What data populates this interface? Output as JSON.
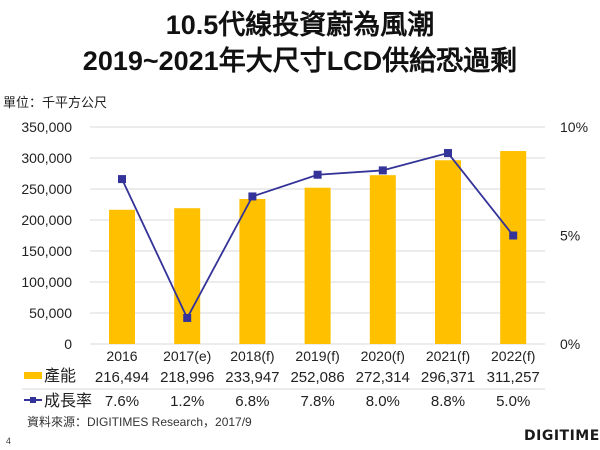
{
  "slide": {
    "title_line1": "10.5代線投資蔚為風潮",
    "title_line2": "2019~2021年大尺寸LCD供給恐過剩",
    "unit_label": "單位：千平方公尺",
    "source": "資料來源：DIGITIMES Research，2017/9",
    "page_number": "4",
    "logo_text": "DIGITIMES"
  },
  "colors": {
    "bar": "#FFC000",
    "line": "#333399",
    "grid": "#D9D9D9",
    "text": "#222222"
  },
  "chart_data": {
    "type": "bar",
    "title": "10.5代線投資蔚為風潮 2019~2021年大尺寸LCD供給恐過剩",
    "categories": [
      "2016",
      "2017(e)",
      "2018(f)",
      "2019(f)",
      "2020(f)",
      "2021(f)",
      "2022(f)"
    ],
    "series": [
      {
        "name": "產能",
        "type": "bar",
        "axis": "left",
        "values": [
          216494,
          218996,
          233947,
          252086,
          272314,
          296371,
          311257
        ],
        "labels": [
          "216,494",
          "218,996",
          "233,947",
          "252,086",
          "272,314",
          "296,371",
          "311,257"
        ]
      },
      {
        "name": "成長率",
        "type": "line",
        "axis": "right",
        "values": [
          7.6,
          1.2,
          6.8,
          7.8,
          8.0,
          8.8,
          5.0
        ],
        "labels": [
          "7.6%",
          "1.2%",
          "6.8%",
          "7.8%",
          "8.0%",
          "8.8%",
          "5.0%"
        ]
      }
    ],
    "ylabel": "單位：千平方公尺",
    "ylim": [
      0,
      350000
    ],
    "yticks": [
      0,
      50000,
      100000,
      150000,
      200000,
      250000,
      300000,
      350000
    ],
    "ytick_labels": [
      "0",
      "50,000",
      "100,000",
      "150,000",
      "200,000",
      "250,000",
      "300,000",
      "350,000"
    ],
    "y2lim": [
      0,
      10
    ],
    "y2ticks": [
      0,
      5,
      10
    ],
    "y2tick_labels": [
      "0%",
      "5%",
      "10%"
    ],
    "grid": true,
    "legend": "data-table-bottom"
  }
}
